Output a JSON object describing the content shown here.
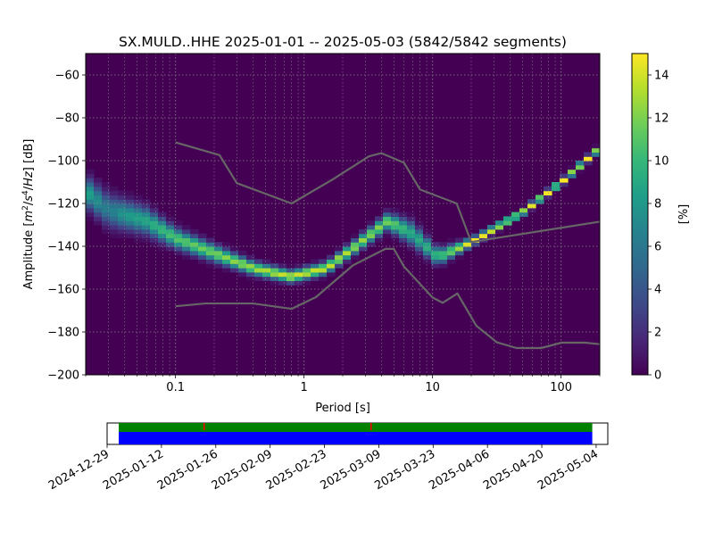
{
  "figure": {
    "title": "SX.MULD..HHE   2025-01-01 -- 2025-05-03  (5842/5842 segments)"
  },
  "chart_data": [
    {
      "type": "heatmap",
      "title": "SX.MULD..HHE   2025-01-01 -- 2025-05-03  (5842/5842 segments)",
      "xlabel": "Period [s]",
      "ylabel": "Amplitude [m²/s⁴/Hz] [dB]",
      "ylabel_parts": {
        "main": "Amplitude [",
        "m": "m",
        "m_exp": "2",
        "slash1": "/",
        "s": "s",
        "s_exp": "4",
        "slash2": "/",
        "hz": "Hz",
        "tail": "] [dB]"
      },
      "x_scale": "log",
      "xlim": [
        0.02,
        200
      ],
      "ylim": [
        -200,
        -50
      ],
      "x_ticks": [
        {
          "value": 0.1,
          "label": "0.1"
        },
        {
          "value": 1,
          "label": "1"
        },
        {
          "value": 10,
          "label": "10"
        },
        {
          "value": 100,
          "label": "100"
        }
      ],
      "y_ticks": [
        {
          "value": -60,
          "label": "−60"
        },
        {
          "value": -80,
          "label": "−80"
        },
        {
          "value": -100,
          "label": "−100"
        },
        {
          "value": -120,
          "label": "−120"
        },
        {
          "value": -140,
          "label": "−140"
        },
        {
          "value": -160,
          "label": "−160"
        },
        {
          "value": -180,
          "label": "−180"
        },
        {
          "value": -200,
          "label": "−200"
        }
      ],
      "grid": true,
      "colormap": "viridis",
      "colorbar": {
        "label": "[%]",
        "range": [
          0,
          15
        ],
        "ticks": [
          {
            "value": 0,
            "label": "0"
          },
          {
            "value": 2,
            "label": "2"
          },
          {
            "value": 4,
            "label": "4"
          },
          {
            "value": 6,
            "label": "6"
          },
          {
            "value": 8,
            "label": "8"
          },
          {
            "value": 10,
            "label": "10"
          },
          {
            "value": 12,
            "label": "12"
          },
          {
            "value": 14,
            "label": "14"
          }
        ]
      },
      "density_ridge": [
        {
          "period": 0.02,
          "db": -114,
          "spread": 4.5,
          "peak": 9
        },
        {
          "period": 0.03,
          "db": -123,
          "spread": 5.0,
          "peak": 6
        },
        {
          "period": 0.04,
          "db": -125,
          "spread": 4.5,
          "peak": 8
        },
        {
          "period": 0.06,
          "db": -128,
          "spread": 4.0,
          "peak": 9
        },
        {
          "period": 0.1,
          "db": -136,
          "spread": 3.0,
          "peak": 11
        },
        {
          "period": 0.2,
          "db": -143,
          "spread": 2.5,
          "peak": 12
        },
        {
          "period": 0.4,
          "db": -150,
          "spread": 2.0,
          "peak": 13
        },
        {
          "period": 0.8,
          "db": -154,
          "spread": 1.8,
          "peak": 14
        },
        {
          "period": 1.5,
          "db": -150,
          "spread": 1.8,
          "peak": 14
        },
        {
          "period": 2.5,
          "db": -140,
          "spread": 2.0,
          "peak": 13
        },
        {
          "period": 4.5,
          "db": -128,
          "spread": 2.5,
          "peak": 12
        },
        {
          "period": 7,
          "db": -134,
          "spread": 3.5,
          "peak": 9
        },
        {
          "period": 11,
          "db": -145,
          "spread": 2.5,
          "peak": 10
        },
        {
          "period": 20,
          "db": -138,
          "spread": 1.2,
          "peak": 15
        },
        {
          "period": 50,
          "db": -124,
          "spread": 1.0,
          "peak": 15
        },
        {
          "period": 100,
          "db": -110,
          "spread": 1.0,
          "peak": 15
        },
        {
          "period": 200,
          "db": -94,
          "spread": 1.0,
          "peak": 15
        }
      ],
      "series": [
        {
          "role": "noise model upper bound",
          "x": [
            0.1,
            0.22,
            0.3,
            0.8,
            1.7,
            3.2,
            4,
            6,
            8,
            15.4,
            20,
            200
          ],
          "y": [
            -91.5,
            -97.4,
            -110.5,
            -120,
            -108.5,
            -98,
            -96.5,
            -101,
            -113.5,
            -120,
            -138,
            -128.5
          ]
        },
        {
          "role": "noise model lower bound",
          "x": [
            0.1,
            0.17,
            0.4,
            0.8,
            1.24,
            2.4,
            4.3,
            5,
            6,
            10,
            12,
            15.6,
            21.9,
            31.6,
            45,
            70,
            101,
            154,
            200
          ],
          "y": [
            -168,
            -166.7,
            -166.7,
            -169.2,
            -163.7,
            -148.9,
            -141.2,
            -141.2,
            -149.5,
            -163.9,
            -166.4,
            -162,
            -177.1,
            -184.8,
            -187.5,
            -187.5,
            -185,
            -185,
            -185.7
          ]
        }
      ]
    },
    {
      "type": "timeline",
      "x_ticks": [
        "2024-12-29",
        "2025-01-12",
        "2025-01-26",
        "2025-02-09",
        "2025-02-23",
        "2025-03-09",
        "2025-03-23",
        "2025-04-06",
        "2025-04-20",
        "2025-05-04"
      ],
      "range": [
        "2024-12-29",
        "2025-05-07"
      ],
      "coverage": {
        "start": "2025-01-01",
        "end": "2025-05-03"
      },
      "colors": {
        "available": "#0000ff",
        "used": "#008000",
        "gap": "#ff0000"
      },
      "gap_markers": [
        "2025-01-23",
        "2025-03-07"
      ]
    }
  ]
}
